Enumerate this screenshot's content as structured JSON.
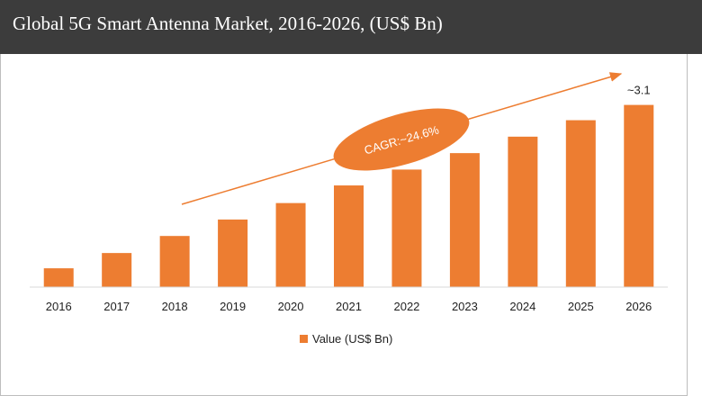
{
  "header": {
    "title": "Global 5G Smart Antenna Market, 2016-2026, (US$ Bn)"
  },
  "colors": {
    "header_bg": "#3c3c3c",
    "bar": "#ed7d31",
    "axis": "#d9d9d9",
    "text": "#1f1f1f"
  },
  "chart_data": {
    "type": "bar",
    "title": "Global 5G Smart Antenna Market, 2016-2026, (US$ Bn)",
    "categories": [
      "2016",
      "2017",
      "2018",
      "2019",
      "2020",
      "2021",
      "2022",
      "2023",
      "2024",
      "2025",
      "2026"
    ],
    "series": [
      {
        "name": "Value (US$ Bn)",
        "values": [
          0.32,
          0.58,
          0.87,
          1.15,
          1.43,
          1.73,
          2.0,
          2.28,
          2.56,
          2.84,
          3.1
        ]
      }
    ],
    "data_labels": [
      {
        "category": "2026",
        "text": "~3.1"
      }
    ],
    "annotation": {
      "text": "CAGR:~24.6%"
    },
    "ylim": [
      0,
      3.4
    ],
    "grid": false,
    "legend": "bottom"
  }
}
